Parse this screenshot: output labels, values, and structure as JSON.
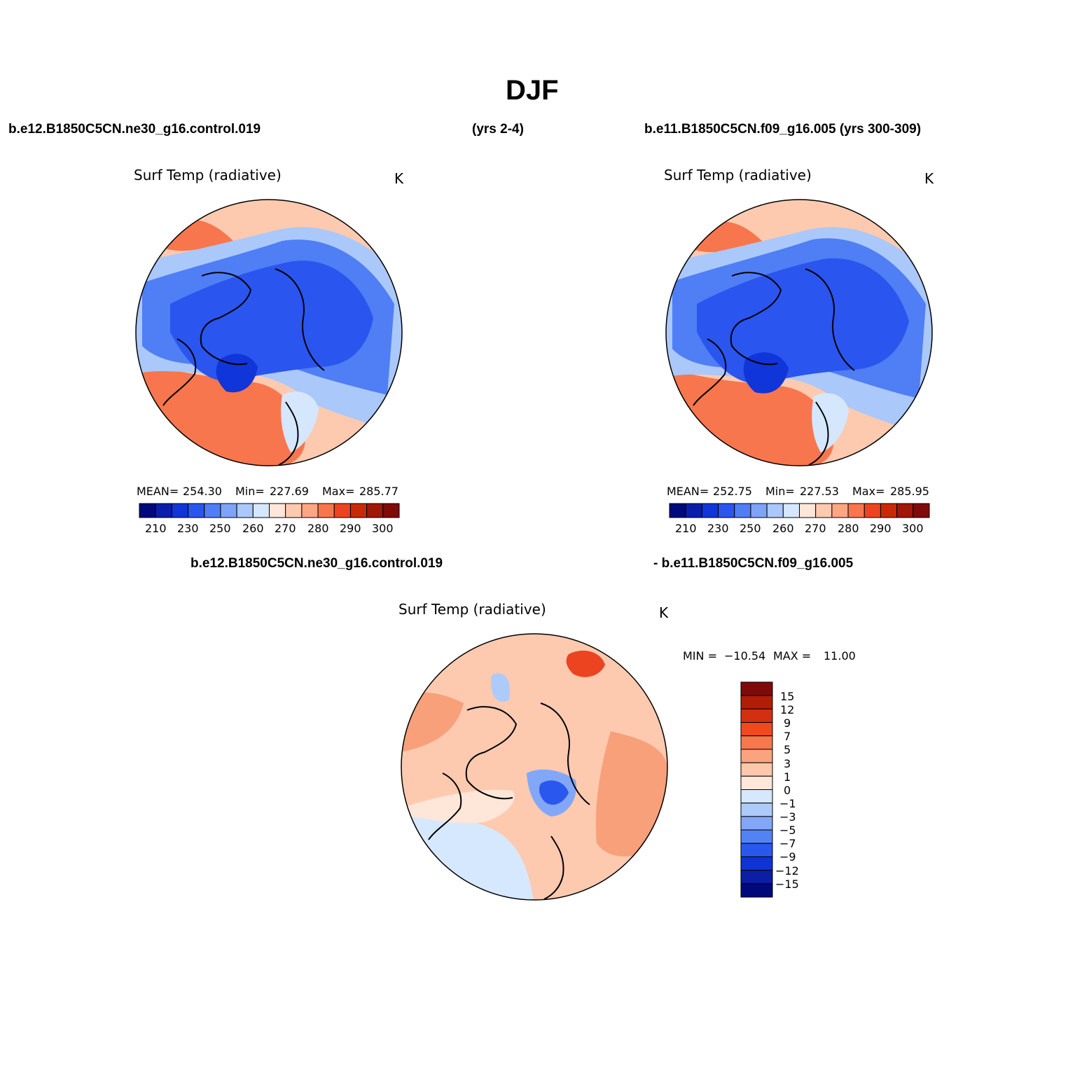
{
  "figure_title": "DJF",
  "headers": {
    "case1": "b.e12.B1850C5CN.ne30_g16.control.019",
    "case1_years": "(yrs 2-4)",
    "case2": "b.e11.B1850C5CN.f09_g16.005 (yrs 300-309)",
    "diff_case1": "b.e12.B1850C5CN.ne30_g16.control.019",
    "diff_case2": "- b.e11.B1850C5CN.f09_g16.005"
  },
  "chart_data": [
    {
      "type": "polar_contour_map",
      "title": "Surf Temp (radiative)",
      "units": "K",
      "projection": "north-polar-stereographic",
      "stats": {
        "mean_label": "MEAN=",
        "mean": "254.30",
        "min_label": "Min=",
        "min": "227.69",
        "max_label": "Max=",
        "max": "285.77"
      },
      "colorbar": {
        "orientation": "horizontal",
        "tick_labels": [
          "210",
          "230",
          "250",
          "260",
          "270",
          "280",
          "290",
          "300"
        ],
        "colors": [
          "#00097a",
          "#0a1eaa",
          "#1035d8",
          "#2a55ee",
          "#4f7ef5",
          "#7fa4f7",
          "#aac8fa",
          "#d5e7fd",
          "#fee6d8",
          "#fdcab0",
          "#fca782",
          "#f8764d",
          "#ec4420",
          "#c82a08",
          "#a01808",
          "#7f0a0a"
        ]
      }
    },
    {
      "type": "polar_contour_map",
      "title": "Surf Temp (radiative)",
      "units": "K",
      "projection": "north-polar-stereographic",
      "stats": {
        "mean_label": "MEAN=",
        "mean": "252.75",
        "min_label": "Min=",
        "min": "227.53",
        "max_label": "Max=",
        "max": "285.95"
      },
      "colorbar": {
        "orientation": "horizontal",
        "tick_labels": [
          "210",
          "230",
          "250",
          "260",
          "270",
          "280",
          "290",
          "300"
        ],
        "colors": [
          "#00097a",
          "#0a1eaa",
          "#1035d8",
          "#2a55ee",
          "#4f7ef5",
          "#7fa4f7",
          "#aac8fa",
          "#d5e7fd",
          "#fee6d8",
          "#fdcab0",
          "#fca782",
          "#f8764d",
          "#ec4420",
          "#c82a08",
          "#a01808",
          "#7f0a0a"
        ]
      }
    },
    {
      "type": "polar_contour_map",
      "title": "Surf Temp (radiative)",
      "units": "K",
      "projection": "north-polar-stereographic",
      "stats": {
        "min_label": "MIN =",
        "min": "−10.54",
        "max_label": "MAX =",
        "max": "11.00"
      },
      "colorbar": {
        "orientation": "vertical",
        "tick_labels": [
          "15",
          "12",
          "9",
          "7",
          "5",
          "3",
          "1",
          "0",
          "−1",
          "−3",
          "−5",
          "−7",
          "−9",
          "−12",
          "−15"
        ],
        "colors": [
          "#7f0a0a",
          "#b01e08",
          "#d23010",
          "#ee4a1c",
          "#f7774e",
          "#fba27f",
          "#fdc7ac",
          "#fee6d8",
          "#d6e8fd",
          "#adcbfa",
          "#83a7f7",
          "#5283f4",
          "#2a58ee",
          "#0f34d6",
          "#0a1ea8",
          "#00097a"
        ]
      }
    }
  ]
}
